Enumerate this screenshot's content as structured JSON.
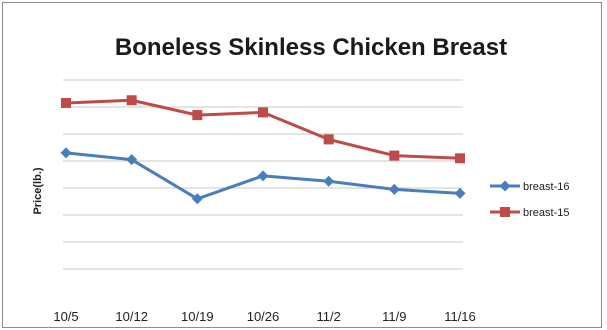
{
  "chart_data": {
    "type": "line",
    "title": "Boneless Skinless Chicken Breast",
    "xlabel": "",
    "ylabel": "Price(lb.)",
    "categories": [
      "10/5",
      "10/12",
      "10/19",
      "10/26",
      "11/2",
      "11/9",
      "11/16"
    ],
    "ylim": [
      0,
      8
    ],
    "y_ticks_labeled": false,
    "grid": true,
    "legend_position": "right",
    "series": [
      {
        "name": "breast-16",
        "color": "#4a7ebb",
        "marker": "diamond",
        "values": [
          5.3,
          5.05,
          3.6,
          4.45,
          4.25,
          3.95,
          3.8
        ]
      },
      {
        "name": "breast-15",
        "color": "#be4b48",
        "marker": "square",
        "values": [
          7.15,
          7.25,
          6.7,
          6.8,
          5.8,
          5.2,
          5.1
        ]
      }
    ]
  }
}
